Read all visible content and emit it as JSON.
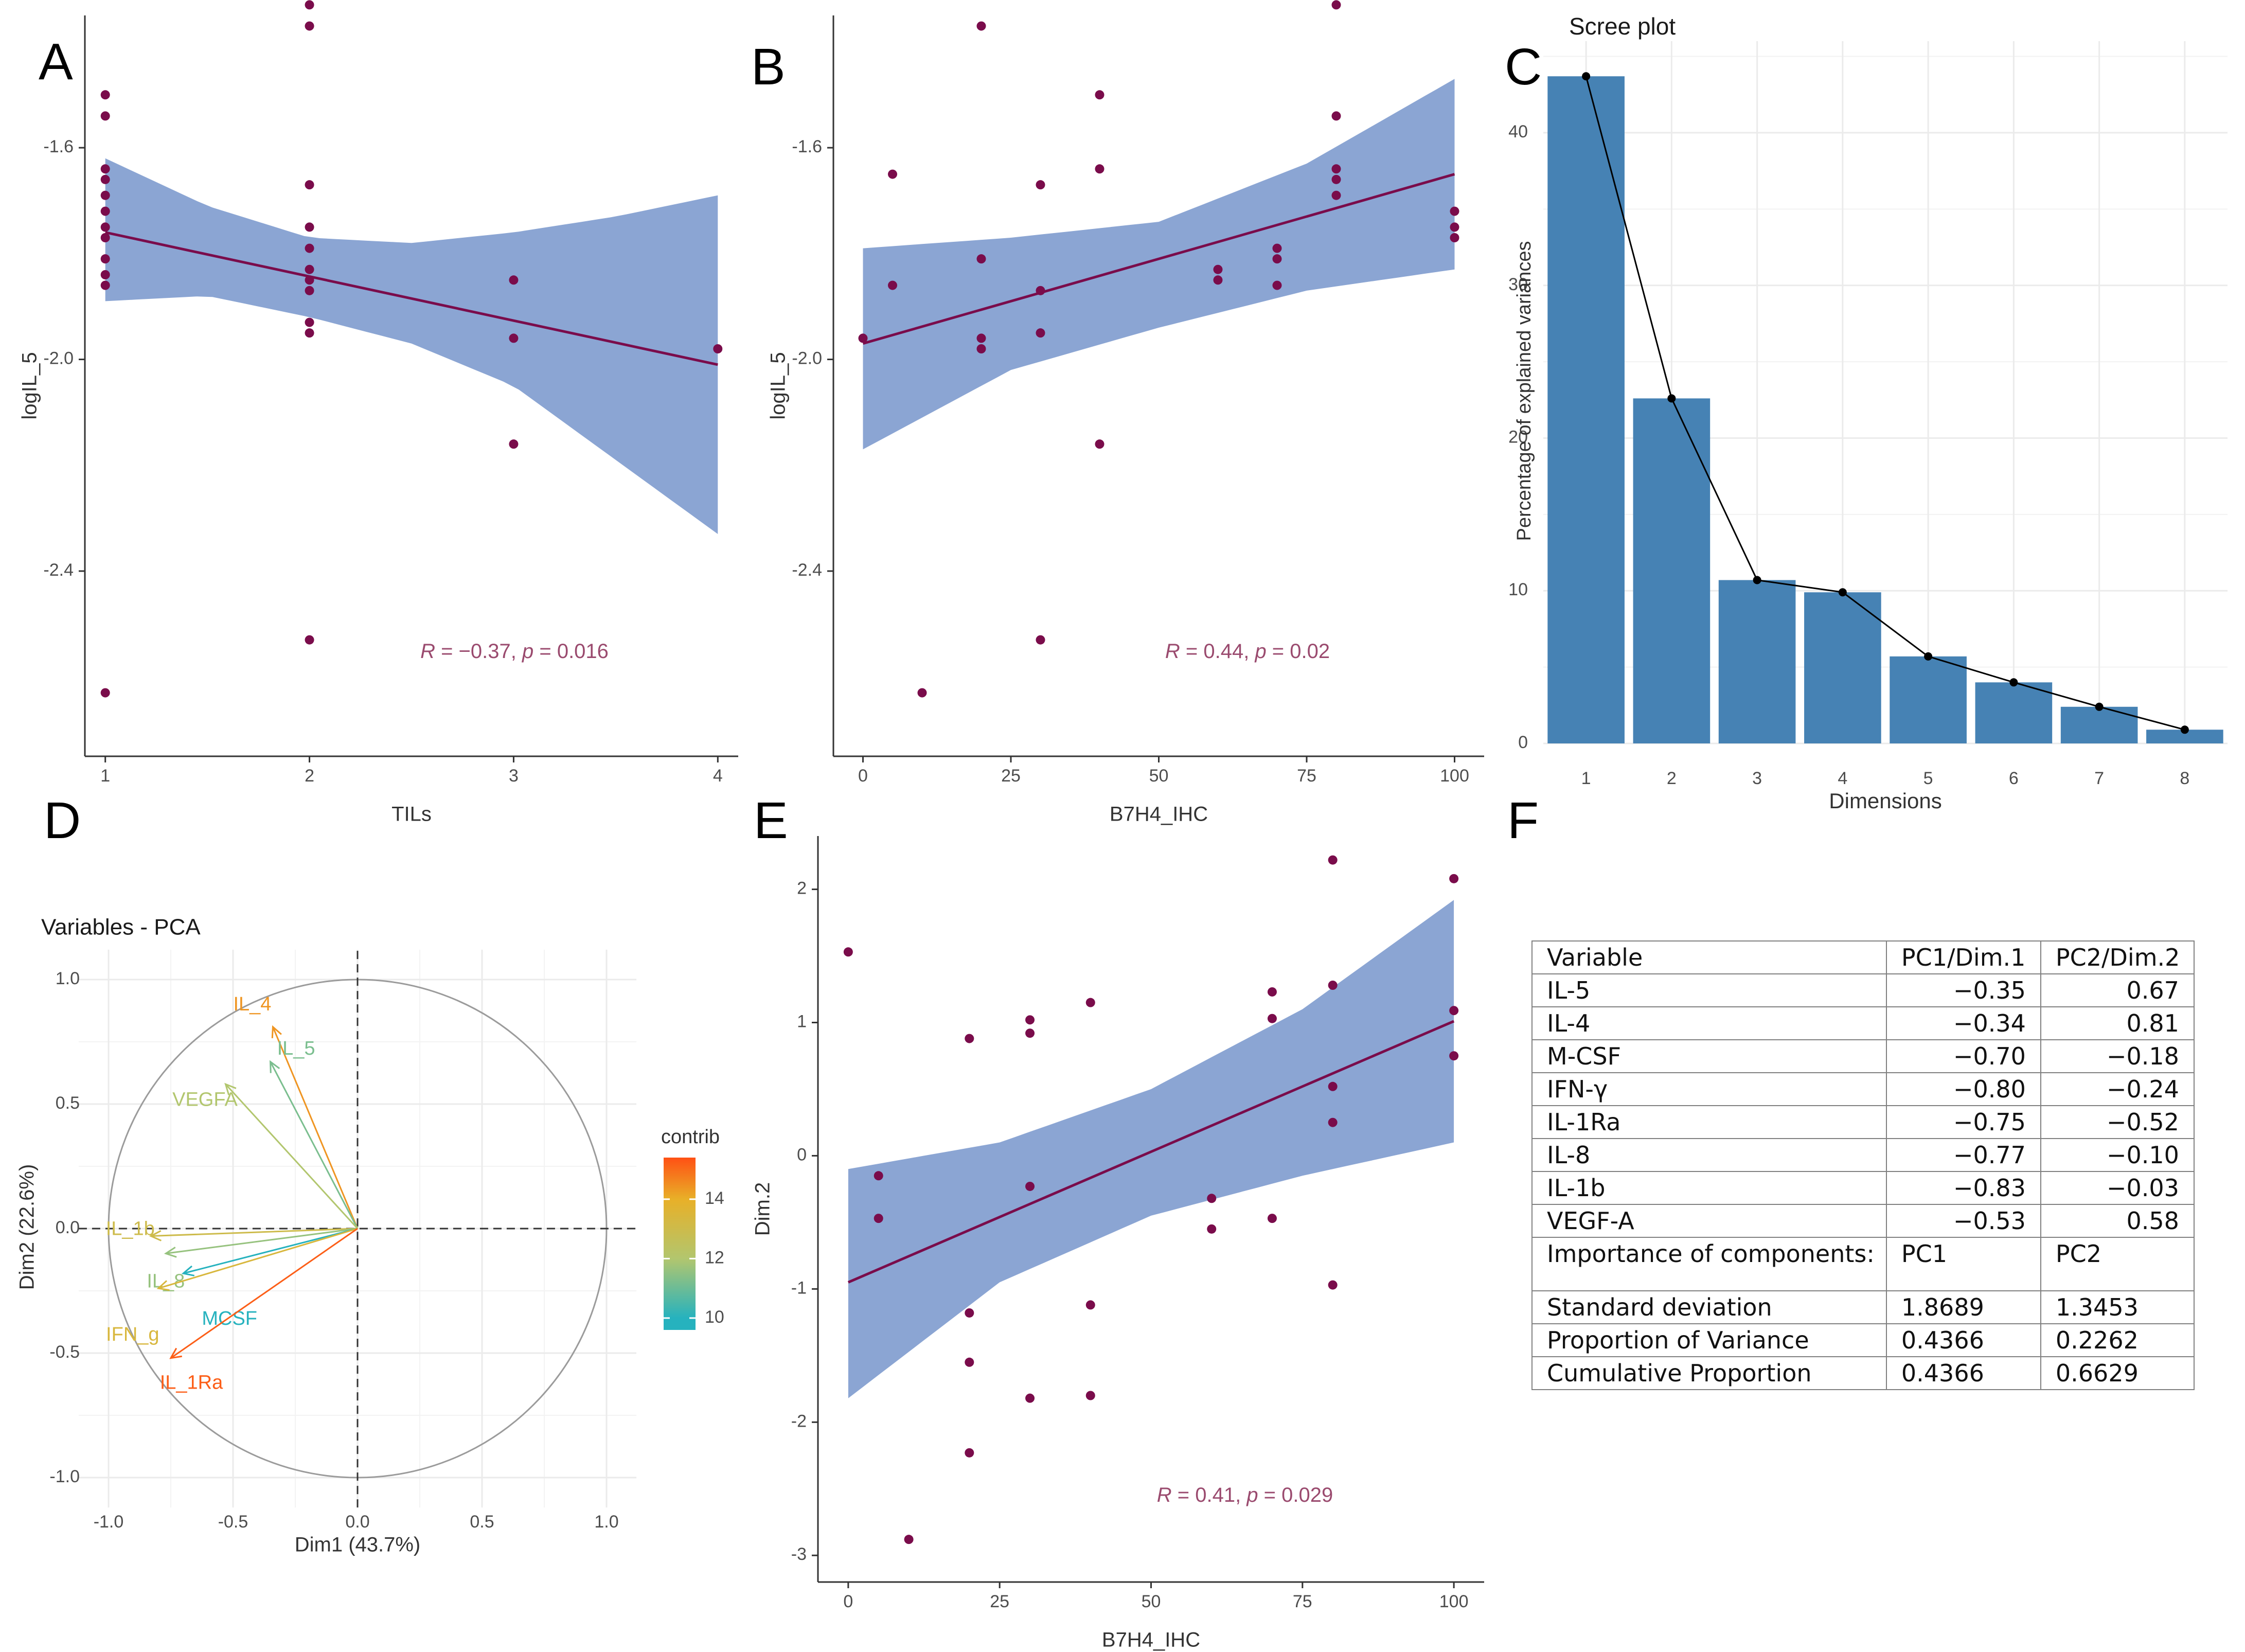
{
  "panel_labels": [
    "A",
    "B",
    "C",
    "D",
    "E",
    "F"
  ],
  "colors": {
    "point": "#7a0c4b",
    "ribbon": "#8ba5d3",
    "bar": "#4682b4",
    "annot": "#9a4a6e",
    "grid": "#ebebeb",
    "circle": "#9b9b9b"
  },
  "chart_data": [
    {
      "panel": "A",
      "type": "scatter",
      "xlabel": "TILs",
      "ylabel": "logIL_5",
      "xlim": [
        0.9,
        4.1
      ],
      "ylim": [
        -2.75,
        -1.35
      ],
      "xticks": [
        1,
        2,
        3,
        4
      ],
      "yticks": [
        -1.6,
        -2.0,
        -2.4
      ],
      "ytick_labels": [
        "-1.6",
        "-2.0",
        "-2.4"
      ],
      "points": [
        [
          1,
          -1.5
        ],
        [
          1,
          -1.54
        ],
        [
          1,
          -1.64
        ],
        [
          1,
          -1.66
        ],
        [
          1,
          -1.69
        ],
        [
          1,
          -1.72
        ],
        [
          1,
          -1.75
        ],
        [
          1,
          -1.77
        ],
        [
          1,
          -1.81
        ],
        [
          1,
          -1.84
        ],
        [
          1,
          -1.86
        ],
        [
          1,
          -2.63
        ],
        [
          2,
          -1.33
        ],
        [
          2,
          -1.37
        ],
        [
          2,
          -1.67
        ],
        [
          2,
          -1.75
        ],
        [
          2,
          -1.79
        ],
        [
          2,
          -1.83
        ],
        [
          2,
          -1.85
        ],
        [
          2,
          -1.87
        ],
        [
          2,
          -1.93
        ],
        [
          2,
          -1.95
        ],
        [
          2,
          -2.53
        ],
        [
          3,
          -1.85
        ],
        [
          3,
          -1.96
        ],
        [
          3,
          -2.16
        ],
        [
          4,
          -1.98
        ]
      ],
      "fit": {
        "x": [
          1,
          4
        ],
        "y": [
          -1.76,
          -2.01
        ]
      },
      "band": {
        "x": [
          1,
          1.5,
          2,
          2.5,
          3,
          3.5,
          4
        ],
        "lower": [
          -1.89,
          -1.88,
          -1.92,
          -1.97,
          -2.05,
          -2.19,
          -2.33
        ],
        "upper": [
          -1.62,
          -1.71,
          -1.77,
          -1.78,
          -1.76,
          -1.73,
          -1.69
        ]
      },
      "annotation": "R = −0.37, p = 0.016"
    },
    {
      "panel": "B",
      "type": "scatter",
      "xlabel": "B7H4_IHC",
      "ylabel": "logIL_5",
      "xlim": [
        -5,
        105
      ],
      "ylim": [
        -2.75,
        -1.35
      ],
      "xticks": [
        0,
        25,
        50,
        75,
        100
      ],
      "yticks": [
        -1.6,
        -2.0,
        -2.4
      ],
      "ytick_labels": [
        "-1.6",
        "-2.0",
        "-2.4"
      ],
      "points": [
        [
          0,
          -1.96
        ],
        [
          5,
          -1.65
        ],
        [
          5,
          -1.86
        ],
        [
          10,
          -2.63
        ],
        [
          20,
          -1.37
        ],
        [
          20,
          -1.81
        ],
        [
          20,
          -1.96
        ],
        [
          20,
          -1.98
        ],
        [
          30,
          -1.67
        ],
        [
          30,
          -1.87
        ],
        [
          30,
          -1.95
        ],
        [
          30,
          -2.53
        ],
        [
          40,
          -1.5
        ],
        [
          40,
          -1.64
        ],
        [
          40,
          -2.16
        ],
        [
          60,
          -1.83
        ],
        [
          60,
          -1.85
        ],
        [
          70,
          -1.79
        ],
        [
          70,
          -1.81
        ],
        [
          70,
          -1.86
        ],
        [
          80,
          -1.33
        ],
        [
          80,
          -1.54
        ],
        [
          80,
          -1.64
        ],
        [
          80,
          -1.66
        ],
        [
          80,
          -1.69
        ],
        [
          100,
          -1.72
        ],
        [
          100,
          -1.75
        ],
        [
          100,
          -1.77
        ]
      ],
      "fit": {
        "x": [
          0,
          100
        ],
        "y": [
          -1.97,
          -1.65
        ]
      },
      "band": {
        "x": [
          0,
          25,
          50,
          75,
          100
        ],
        "lower": [
          -2.17,
          -2.02,
          -1.94,
          -1.87,
          -1.83
        ],
        "upper": [
          -1.79,
          -1.77,
          -1.74,
          -1.63,
          -1.47
        ]
      },
      "annotation": "R = 0.44, p = 0.02"
    },
    {
      "panel": "C",
      "type": "bar",
      "title": "Scree plot",
      "xlabel": "Dimensions",
      "ylabel": "Percentage of explained variances",
      "categories": [
        "1",
        "2",
        "3",
        "4",
        "5",
        "6",
        "7",
        "8"
      ],
      "values": [
        43.7,
        22.6,
        10.7,
        9.9,
        5.7,
        4.0,
        2.4,
        0.9
      ],
      "ylim": [
        0,
        46
      ],
      "yticks": [
        0,
        10,
        20,
        30,
        40
      ],
      "line_overlay": true
    },
    {
      "panel": "D",
      "type": "scatter",
      "title": "Variables - PCA",
      "xlabel": "Dim1 (43.7%)",
      "ylabel": "Dim2 (22.6%)",
      "xlim": [
        -1.0,
        1.0
      ],
      "ylim": [
        -1.0,
        1.0
      ],
      "xticks": [
        -1.0,
        -0.5,
        0.0,
        0.5,
        1.0
      ],
      "yticks": [
        -1.0,
        -0.5,
        0.0,
        0.5,
        1.0
      ],
      "xtick_labels": [
        "-1.0",
        "-0.5",
        "0.0",
        "0.5",
        "1.0"
      ],
      "ytick_labels": [
        "-1.0",
        "-0.5",
        "0.0",
        "0.5",
        "1.0"
      ],
      "legend": {
        "title": "contrib",
        "ticks": [
          10,
          12,
          14
        ],
        "range": [
          9.6,
          15.4
        ]
      },
      "arrows": [
        {
          "name": "IL_4",
          "x": -0.34,
          "y": 0.81,
          "contrib": 14.4
        },
        {
          "name": "IL_5",
          "x": -0.35,
          "y": 0.67,
          "contrib": 11.2
        },
        {
          "name": "VEGFA",
          "x": -0.53,
          "y": 0.58,
          "contrib": 12.0
        },
        {
          "name": "IL_1b",
          "x": -0.83,
          "y": -0.03,
          "contrib": 13.0
        },
        {
          "name": "IL_8",
          "x": -0.77,
          "y": -0.1,
          "contrib": 11.6
        },
        {
          "name": "MCSF",
          "x": -0.7,
          "y": -0.18,
          "contrib": 9.7
        },
        {
          "name": "IFN_g",
          "x": -0.8,
          "y": -0.24,
          "contrib": 13.4
        },
        {
          "name": "IL_1Ra",
          "x": -0.75,
          "y": -0.52,
          "contrib": 15.2
        }
      ]
    },
    {
      "panel": "E",
      "type": "scatter",
      "xlabel": "B7H4_IHC",
      "ylabel": "Dim.2",
      "xlim": [
        -5,
        105
      ],
      "ylim": [
        -3.2,
        2.4
      ],
      "xticks": [
        0,
        25,
        50,
        75,
        100
      ],
      "yticks": [
        -3,
        -2,
        -1,
        0,
        1,
        2
      ],
      "ytick_labels": [
        "-3",
        "-2",
        "-1",
        "0",
        "1",
        "2"
      ],
      "points": [
        [
          0,
          1.53
        ],
        [
          5,
          -0.15
        ],
        [
          5,
          -0.47
        ],
        [
          10,
          -2.88
        ],
        [
          20,
          0.88
        ],
        [
          20,
          -1.18
        ],
        [
          20,
          -1.55
        ],
        [
          20,
          -2.23
        ],
        [
          30,
          1.02
        ],
        [
          30,
          0.92
        ],
        [
          30,
          -0.23
        ],
        [
          30,
          -1.82
        ],
        [
          40,
          1.15
        ],
        [
          40,
          -1.12
        ],
        [
          40,
          -1.8
        ],
        [
          60,
          -0.32
        ],
        [
          60,
          -0.55
        ],
        [
          70,
          1.23
        ],
        [
          70,
          1.03
        ],
        [
          70,
          -0.47
        ],
        [
          80,
          2.22
        ],
        [
          80,
          1.28
        ],
        [
          80,
          0.52
        ],
        [
          80,
          0.25
        ],
        [
          80,
          -0.97
        ],
        [
          100,
          2.08
        ],
        [
          100,
          1.09
        ],
        [
          100,
          0.75
        ]
      ],
      "fit": {
        "x": [
          0,
          100
        ],
        "y": [
          -0.95,
          1.01
        ]
      },
      "band": {
        "x": [
          0,
          25,
          50,
          75,
          100
        ],
        "lower": [
          -1.82,
          -0.95,
          -0.45,
          -0.15,
          0.1
        ],
        "upper": [
          -0.1,
          0.1,
          0.5,
          1.1,
          1.92
        ]
      },
      "annotation": "R = 0.41, p = 0.029"
    }
  ],
  "table": {
    "header": [
      "Variable",
      "PC1/Dim.1",
      "PC2/Dim.2"
    ],
    "rows": [
      [
        "IL-5",
        "−0.35",
        "0.67"
      ],
      [
        "IL-4",
        "−0.34",
        "0.81"
      ],
      [
        "M-CSF",
        "−0.70",
        "−0.18"
      ],
      [
        "IFN-γ",
        "−0.80",
        "−0.24"
      ],
      [
        "IL-1Ra",
        "−0.75",
        "−0.52"
      ],
      [
        "IL-8",
        "−0.77",
        "−0.10"
      ],
      [
        "IL-1b",
        "−0.83",
        "−0.03"
      ],
      [
        "VEGF-A",
        "−0.53",
        "0.58"
      ]
    ],
    "importance_row": [
      "Importance of components:",
      "PC1",
      "PC2"
    ],
    "summary_rows": [
      [
        "Standard deviation",
        "1.8689",
        "1.3453"
      ],
      [
        "Proportion of Variance",
        "0.4366",
        "0.2262"
      ],
      [
        "Cumulative Proportion",
        "0.4366",
        "0.6629"
      ]
    ]
  }
}
